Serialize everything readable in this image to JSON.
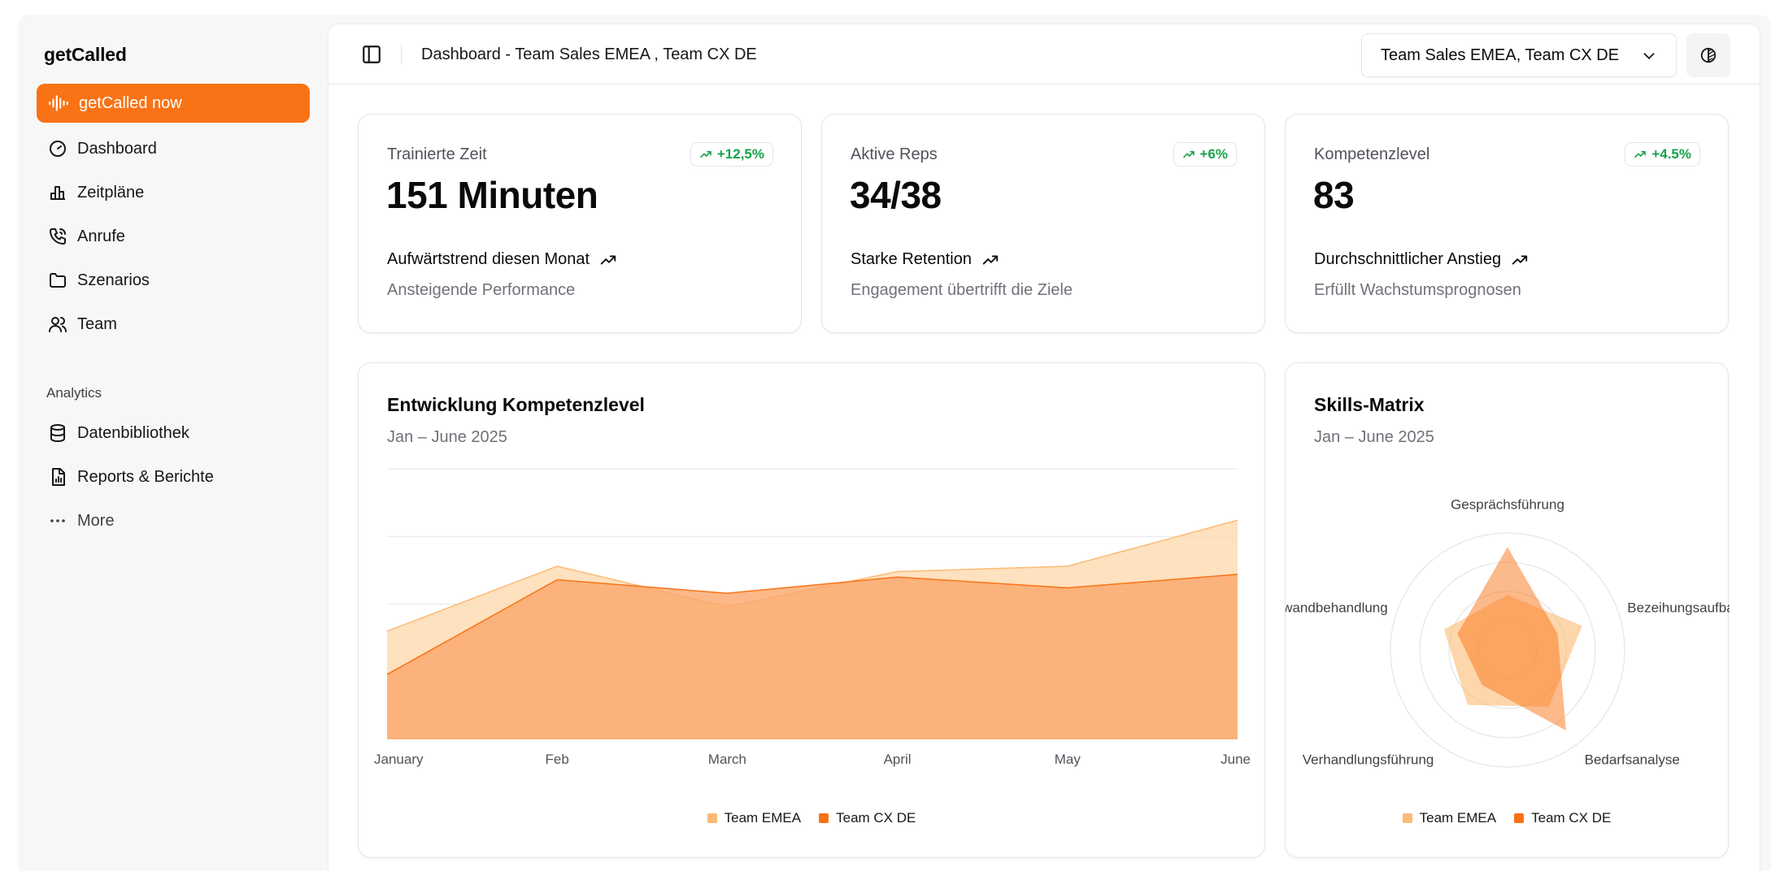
{
  "sidebar": {
    "brand": "getCalled",
    "cta_label": "getCalled now",
    "items": [
      {
        "label": "Dashboard",
        "icon": "gauge-icon"
      },
      {
        "label": "Zeitpläne",
        "icon": "bar-chart-icon"
      },
      {
        "label": "Anrufe",
        "icon": "phone-icon"
      },
      {
        "label": "Szenarios",
        "icon": "folder-icon"
      },
      {
        "label": "Team",
        "icon": "users-icon"
      }
    ],
    "analytics_heading": "Analytics",
    "analytics_items": [
      {
        "label": "Datenbibliothek",
        "icon": "database-icon"
      },
      {
        "label": "Reports & Berichte",
        "icon": "file-chart-icon"
      },
      {
        "label": "More",
        "icon": "ellipsis-icon"
      }
    ]
  },
  "header": {
    "title": "Dashboard - Team Sales EMEA , Team CX DE",
    "team_select_value": "Team Sales EMEA, Team CX DE"
  },
  "kpis": [
    {
      "label": "Trainierte Zeit",
      "value": "151 Minuten",
      "badge": "+12,5%",
      "trend": "Aufwärtstrend diesen Monat",
      "sub": "Ansteigende Performance"
    },
    {
      "label": "Aktive Reps",
      "value": "34/38",
      "badge": "+6%",
      "trend": "Starke Retention",
      "sub": "Engagement übertrifft die Ziele"
    },
    {
      "label": "Kompetenzlevel",
      "value": "83",
      "badge": "+4.5%",
      "trend": "Durchschnittlicher Anstieg",
      "sub": "Erfüllt Wachstumsprognosen"
    }
  ],
  "colors": {
    "accent": "#f97316",
    "emea": "#fdba74",
    "cx": "#f97316",
    "positive": "#16a34a"
  },
  "area_chart": {
    "title": "Entwicklung Kompetenzlevel",
    "subtitle": "Jan – June 2025"
  },
  "radar_chart": {
    "title": "Skills-Matrix",
    "subtitle": "Jan – June 2025"
  },
  "chart_data": [
    {
      "type": "area",
      "title": "Entwicklung Kompetenzlevel",
      "subtitle": "Jan – June 2025",
      "categories": [
        "January",
        "Feb",
        "March",
        "April",
        "May",
        "June"
      ],
      "ylim": [
        0,
        100
      ],
      "grid": true,
      "legend": "bottom-center",
      "series": [
        {
          "name": "Team EMEA",
          "values": [
            40,
            64,
            49,
            62,
            64,
            81
          ]
        },
        {
          "name": "Team CX DE",
          "values": [
            24,
            59,
            54,
            60,
            56,
            61
          ]
        }
      ]
    },
    {
      "type": "radar",
      "title": "Skills-Matrix",
      "subtitle": "Jan – June 2025",
      "axes": [
        "Gesprächsführung",
        "Bezeihungsaufbau",
        "Bedarfsanalyse",
        "Verhandlungsführung",
        "Einwandbehandlung"
      ],
      "max": 100,
      "legend": "bottom-center",
      "series": [
        {
          "name": "Team EMEA",
          "values": [
            47,
            67,
            60,
            58,
            57
          ]
        },
        {
          "name": "Team CX DE",
          "values": [
            88,
            45,
            85,
            37,
            45
          ]
        }
      ]
    }
  ]
}
